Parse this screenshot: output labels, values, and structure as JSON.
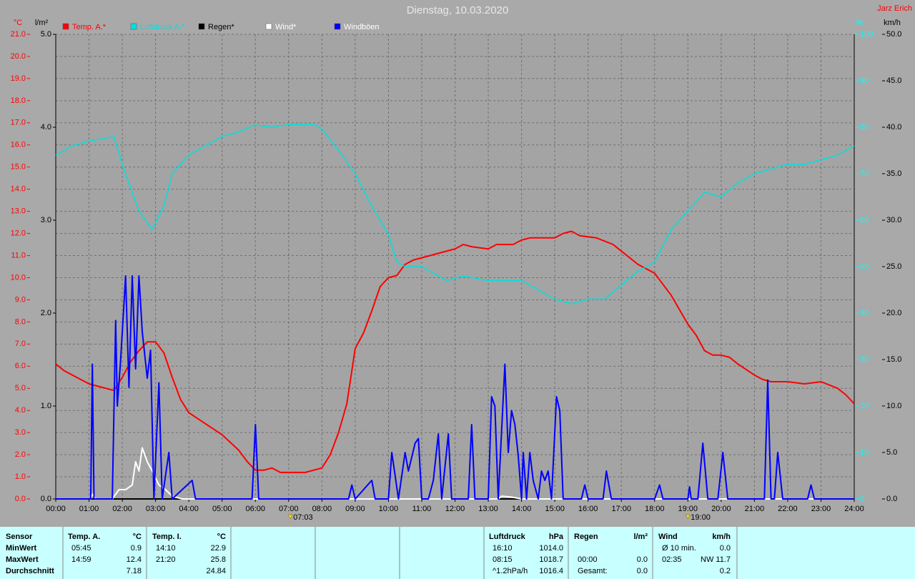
{
  "chart_data": {
    "type": "line",
    "title": "Dienstag, 10.03.2020",
    "author": "Jarz Erich",
    "xlim": [
      0,
      24
    ],
    "xticks": [
      {
        "value": 0,
        "label": "00:00"
      },
      {
        "value": 1,
        "label": "01:00"
      },
      {
        "value": 2,
        "label": "02:00"
      },
      {
        "value": 3,
        "label": "03:00"
      },
      {
        "value": 4,
        "label": "04:00"
      },
      {
        "value": 5,
        "label": "05:00"
      },
      {
        "value": 6,
        "label": "06:00"
      },
      {
        "value": 7,
        "label": "07:00"
      },
      {
        "value": 8,
        "label": "08:00"
      },
      {
        "value": 9,
        "label": "09:00"
      },
      {
        "value": 10,
        "label": "10:00"
      },
      {
        "value": 11,
        "label": "11:00"
      },
      {
        "value": 12,
        "label": "12:00"
      },
      {
        "value": 13,
        "label": "13:00"
      },
      {
        "value": 14,
        "label": "14:00"
      },
      {
        "value": 15,
        "label": "15:00"
      },
      {
        "value": 16,
        "label": "16:00"
      },
      {
        "value": 17,
        "label": "17:00"
      },
      {
        "value": 18,
        "label": "18:00"
      },
      {
        "value": 19,
        "label": "19:00"
      },
      {
        "value": 20,
        "label": "20:00"
      },
      {
        "value": 21,
        "label": "21:00"
      },
      {
        "value": 22,
        "label": "22:00"
      },
      {
        "value": 23,
        "label": "23:00"
      },
      {
        "value": 24,
        "label": "24:00"
      }
    ],
    "grid": true,
    "y_axes": [
      {
        "label": "°C",
        "side": "left",
        "color": "#ff0000",
        "lim": [
          0,
          21
        ],
        "ticks": [
          {
            "value": 0,
            "label": "0.0"
          },
          {
            "value": 1,
            "label": "1.0"
          },
          {
            "value": 2,
            "label": "2.0"
          },
          {
            "value": 3,
            "label": "3.0"
          },
          {
            "value": 4,
            "label": "4.0"
          },
          {
            "value": 5,
            "label": "5.0"
          },
          {
            "value": 6,
            "label": "6.0"
          },
          {
            "value": 7,
            "label": "7.0"
          },
          {
            "value": 8,
            "label": "8.0"
          },
          {
            "value": 9,
            "label": "9.0"
          },
          {
            "value": 10,
            "label": "10.0"
          },
          {
            "value": 11,
            "label": "11.0"
          },
          {
            "value": 12,
            "label": "12.0"
          },
          {
            "value": 13,
            "label": "13.0"
          },
          {
            "value": 14,
            "label": "14.0"
          },
          {
            "value": 15,
            "label": "15.0"
          },
          {
            "value": 16,
            "label": "16.0"
          },
          {
            "value": 17,
            "label": "17.0"
          },
          {
            "value": 18,
            "label": "18.0"
          },
          {
            "value": 19,
            "label": "19.0"
          },
          {
            "value": 20,
            "label": "20.0"
          },
          {
            "value": 21,
            "label": "21.0"
          }
        ]
      },
      {
        "label": "l/m²",
        "side": "left",
        "color": "#000000",
        "lim": [
          0,
          5
        ],
        "ticks": [
          {
            "value": 0,
            "label": "0.0"
          },
          {
            "value": 1,
            "label": "1.0"
          },
          {
            "value": 2,
            "label": "2.0"
          },
          {
            "value": 3,
            "label": "3.0"
          },
          {
            "value": 4,
            "label": "4.0"
          },
          {
            "value": 5,
            "label": "5.0"
          }
        ]
      },
      {
        "label": "%",
        "side": "right",
        "color": "#00ffff",
        "lim": [
          0,
          100
        ],
        "ticks": [
          0,
          10,
          20,
          30,
          40,
          50,
          60,
          70,
          80,
          90,
          100
        ]
      },
      {
        "label": "km/h",
        "side": "right",
        "color": "#000000",
        "lim": [
          0,
          50
        ],
        "ticks": [
          {
            "value": 0,
            "label": "0.0"
          },
          {
            "value": 5,
            "label": "5.0"
          },
          {
            "value": 10,
            "label": "10.0"
          },
          {
            "value": 15,
            "label": "15.0"
          },
          {
            "value": 20,
            "label": "20.0"
          },
          {
            "value": 25,
            "label": "25.0"
          },
          {
            "value": 30,
            "label": "30.0"
          },
          {
            "value": 35,
            "label": "35.0"
          },
          {
            "value": 40,
            "label": "40.0"
          },
          {
            "value": 45,
            "label": "45.0"
          },
          {
            "value": 50,
            "label": "50.0"
          }
        ]
      }
    ],
    "series": [
      {
        "name": "Temp. A.*",
        "color": "#ff0000",
        "axis": 0,
        "x": [
          0,
          0.25,
          0.5,
          0.75,
          1,
          1.25,
          1.5,
          1.75,
          2,
          2.25,
          2.5,
          2.75,
          3,
          3.25,
          3.5,
          3.75,
          4,
          4.5,
          5,
          5.5,
          5.75,
          6,
          6.25,
          6.5,
          6.75,
          7,
          7.5,
          8,
          8.25,
          8.5,
          8.75,
          9,
          9.25,
          9.5,
          9.75,
          10,
          10.25,
          10.5,
          10.75,
          11,
          11.5,
          12,
          12.25,
          12.5,
          13,
          13.25,
          13.75,
          14,
          14.25,
          14.5,
          15,
          15.25,
          15.5,
          15.75,
          16.25,
          16.75,
          17,
          17.5,
          18,
          18.5,
          19,
          19.25,
          19.5,
          19.75,
          20,
          20.25,
          20.5,
          21,
          21.25,
          21.5,
          22,
          22.5,
          23,
          23.5,
          23.75,
          24
        ],
        "values": [
          6.1,
          5.8,
          5.6,
          5.4,
          5.2,
          5.1,
          5.0,
          4.9,
          5.5,
          6.2,
          6.7,
          7.1,
          7.1,
          6.6,
          5.5,
          4.5,
          3.9,
          3.4,
          2.9,
          2.2,
          1.7,
          1.3,
          1.3,
          1.4,
          1.2,
          1.2,
          1.2,
          1.4,
          2.0,
          3.0,
          4.3,
          6.8,
          7.5,
          8.5,
          9.6,
          10.0,
          10.1,
          10.6,
          10.8,
          10.9,
          11.1,
          11.3,
          11.5,
          11.4,
          11.3,
          11.5,
          11.5,
          11.7,
          11.8,
          11.8,
          11.8,
          12.0,
          12.1,
          11.9,
          11.8,
          11.5,
          11.2,
          10.6,
          10.2,
          9.2,
          7.9,
          7.4,
          6.7,
          6.5,
          6.5,
          6.4,
          6.1,
          5.6,
          5.4,
          5.3,
          5.3,
          5.2,
          5.3,
          5.0,
          4.7,
          4.3
        ]
      },
      {
        "name": "Luftdruck A.*",
        "color": "#00e0e0",
        "axis": 2,
        "x": [
          0,
          0.5,
          1,
          1.75,
          2,
          2.5,
          2.9,
          3.25,
          3.5,
          4,
          4.5,
          5,
          5.5,
          6,
          6.5,
          7,
          7.75,
          8,
          8.5,
          9,
          9.5,
          10,
          10.25,
          10.5,
          11,
          11.75,
          12.25,
          13,
          14,
          14.5,
          15,
          15.5,
          16,
          16.5,
          17,
          17.5,
          18,
          18.5,
          19,
          19.5,
          20,
          20.5,
          21,
          21.5,
          22,
          22.5,
          23,
          23.5,
          24
        ],
        "values": [
          74,
          76,
          77,
          78,
          72,
          62,
          58,
          63,
          70,
          74,
          76,
          78,
          79,
          80.5,
          80,
          80.6,
          80.6,
          79.7,
          75,
          70,
          63,
          57,
          51,
          50,
          50,
          47,
          48,
          47,
          47,
          45,
          43,
          42,
          43,
          43,
          46,
          49,
          51,
          58,
          62,
          66,
          65,
          68,
          70,
          71,
          72,
          72,
          73,
          74,
          76
        ]
      },
      {
        "name": "Regen*",
        "color": "#000000",
        "axis": 1,
        "x": [
          0,
          24
        ],
        "values": [
          0,
          0
        ]
      },
      {
        "name": "Wind*",
        "color": "#ffffff",
        "axis": 3,
        "x": [
          0,
          1.05,
          1.1,
          1.2,
          1.7,
          1.9,
          2.1,
          2.3,
          2.4,
          2.5,
          2.6,
          2.75,
          2.9,
          3.1,
          3.3,
          3.5,
          3.8,
          13.3,
          13.4,
          13.7,
          14.0,
          24
        ],
        "values": [
          0,
          0,
          0.5,
          0,
          0,
          1,
          1,
          1.5,
          4,
          3,
          5.5,
          4,
          3,
          1.5,
          1,
          0.3,
          0,
          0,
          0.3,
          0.2,
          0,
          0
        ]
      },
      {
        "name": "Windböen",
        "color": "#0000ff",
        "axis": 3,
        "x": [
          0,
          1.05,
          1.1,
          1.15,
          1.7,
          1.8,
          1.85,
          1.95,
          2.1,
          2.2,
          2.3,
          2.4,
          2.5,
          2.6,
          2.75,
          2.85,
          2.95,
          3.1,
          3.2,
          3.4,
          3.5,
          4.1,
          4.2,
          5.9,
          6.0,
          6.1,
          8.8,
          8.9,
          9.0,
          9.5,
          9.6,
          10.0,
          10.1,
          10.3,
          10.5,
          10.6,
          10.8,
          10.9,
          11.0,
          11.2,
          11.35,
          11.5,
          11.6,
          11.8,
          11.9,
          12.4,
          12.5,
          12.6,
          13.0,
          13.1,
          13.2,
          13.3,
          13.5,
          13.6,
          13.7,
          13.8,
          13.9,
          14.0,
          14.05,
          14.15,
          14.25,
          14.35,
          14.5,
          14.6,
          14.7,
          14.8,
          14.9,
          15.05,
          15.15,
          15.25,
          15.8,
          15.9,
          16.0,
          16.45,
          16.55,
          16.7,
          18.0,
          18.15,
          18.25,
          19.0,
          19.05,
          19.1,
          19.3,
          19.45,
          19.6,
          19.9,
          20.05,
          20.2,
          21.3,
          21.4,
          21.5,
          21.6,
          21.7,
          21.85,
          22.6,
          22.7,
          22.8,
          24
        ],
        "values": [
          0,
          0,
          14.5,
          0,
          0,
          19.2,
          10,
          15,
          24,
          12,
          24,
          14,
          24,
          18,
          13,
          16,
          0,
          12.5,
          0,
          5,
          0,
          2,
          0,
          0,
          8,
          0,
          0,
          1.5,
          0,
          2,
          0,
          0,
          5,
          0,
          5,
          3,
          6,
          6.5,
          0,
          0,
          2,
          7,
          0,
          7,
          0,
          0,
          8,
          0,
          0,
          11,
          10,
          0,
          14.5,
          5,
          9.5,
          8,
          4.7,
          0,
          5,
          0,
          5,
          2,
          0,
          3,
          2,
          3,
          0,
          11,
          9.5,
          0,
          0,
          1.5,
          0,
          0,
          3,
          0,
          0,
          1.5,
          0,
          0,
          1.3,
          0,
          0,
          6,
          0,
          0,
          5,
          0,
          0,
          12.8,
          0,
          0,
          5,
          0,
          0,
          1.5,
          0,
          0
        ]
      }
    ],
    "annotations": [
      {
        "x": 7.05,
        "label": "07:03"
      },
      {
        "x": 19,
        "label": "19:00"
      }
    ]
  },
  "stats": {
    "sensor_label": "Sensor",
    "row_labels": [
      "MinWert",
      "MaxWert",
      "Durchschnitt"
    ],
    "groups": [
      {
        "title": "Temp. A.",
        "unit": "°C",
        "rows": [
          [
            "05:45",
            "0.9"
          ],
          [
            "14:59",
            "12.4"
          ],
          [
            null,
            "7.18"
          ]
        ]
      },
      {
        "title": "Temp. I.",
        "unit": "°C",
        "rows": [
          [
            "14:10",
            "22.9"
          ],
          [
            "21:20",
            "25.8"
          ],
          [
            null,
            "24.84"
          ]
        ]
      },
      {
        "title": "Luftdruck",
        "unit": "hPa",
        "rows": [
          [
            "16:10",
            "1014.0"
          ],
          [
            "08:15",
            "1018.7"
          ],
          [
            "^1.2hPa/h",
            "1016.4"
          ]
        ]
      },
      {
        "title": "Regen",
        "unit": "l/m²",
        "rows": [
          [
            null,
            null
          ],
          [
            "00:00",
            "0.0"
          ],
          [
            "Gesamt:",
            "0.0"
          ]
        ]
      },
      {
        "title": "Wind",
        "unit": "km/h",
        "rows": [
          [
            "Ø 10 min.",
            "0.0"
          ],
          [
            "02:35",
            "NW 11.7"
          ],
          [
            null,
            "0.2"
          ]
        ]
      }
    ]
  }
}
